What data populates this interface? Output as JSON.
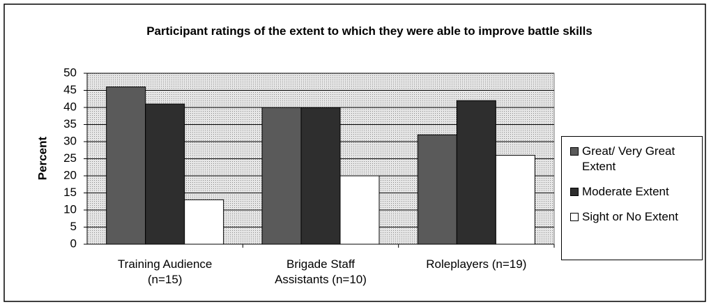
{
  "chart_data": {
    "type": "bar",
    "title": "Participant ratings of the extent to which they were able to improve battle skills",
    "y_label": "Percent",
    "categories": [
      "Training Audience (n=15)",
      "Brigade Staff Assistants (n=10)",
      "Roleplayers (n=19)"
    ],
    "series": [
      {
        "name": "Great/ Very Great Extent",
        "color": "#5a5a5a",
        "values": [
          46,
          40,
          32
        ]
      },
      {
        "name": "Moderate Extent",
        "color": "#2e2e2e",
        "values": [
          41,
          40,
          42
        ]
      },
      {
        "name": "Sight or No Extent",
        "color": "#ffffff",
        "values": [
          13,
          20,
          26
        ]
      }
    ],
    "ylim": [
      0,
      50
    ],
    "yticks": [
      0,
      5,
      10,
      15,
      20,
      25,
      30,
      35,
      40,
      45,
      50
    ],
    "grid": true,
    "legend": "right"
  }
}
